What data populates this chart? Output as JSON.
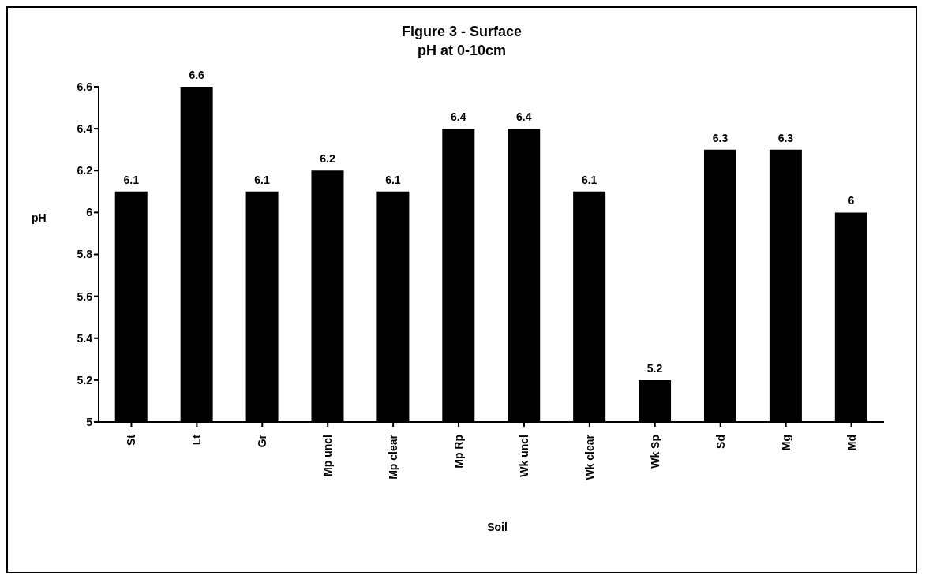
{
  "chart_data": {
    "type": "bar",
    "title": "Figure 3 - Surface",
    "subtitle": "pH at 0-10cm",
    "xlabel": "Soil",
    "ylabel": "pH",
    "categories": [
      "St",
      "Lt",
      "Gr",
      "Mp uncl",
      "Mp clear",
      "Mp Rp",
      "Wk uncl",
      "Wk clear",
      "Wk Sp",
      "Sd",
      "Mg",
      "Md"
    ],
    "values": [
      6.1,
      6.6,
      6.1,
      6.2,
      6.1,
      6.4,
      6.4,
      6.1,
      5.2,
      6.3,
      6.3,
      6
    ],
    "color": "#000000",
    "ylim": [
      5,
      6.6
    ],
    "yticks": [
      5,
      5.2,
      5.4,
      5.6,
      5.8,
      6,
      6.2,
      6.4,
      6.6
    ],
    "data_labels": true,
    "grid": false,
    "legend": false
  }
}
